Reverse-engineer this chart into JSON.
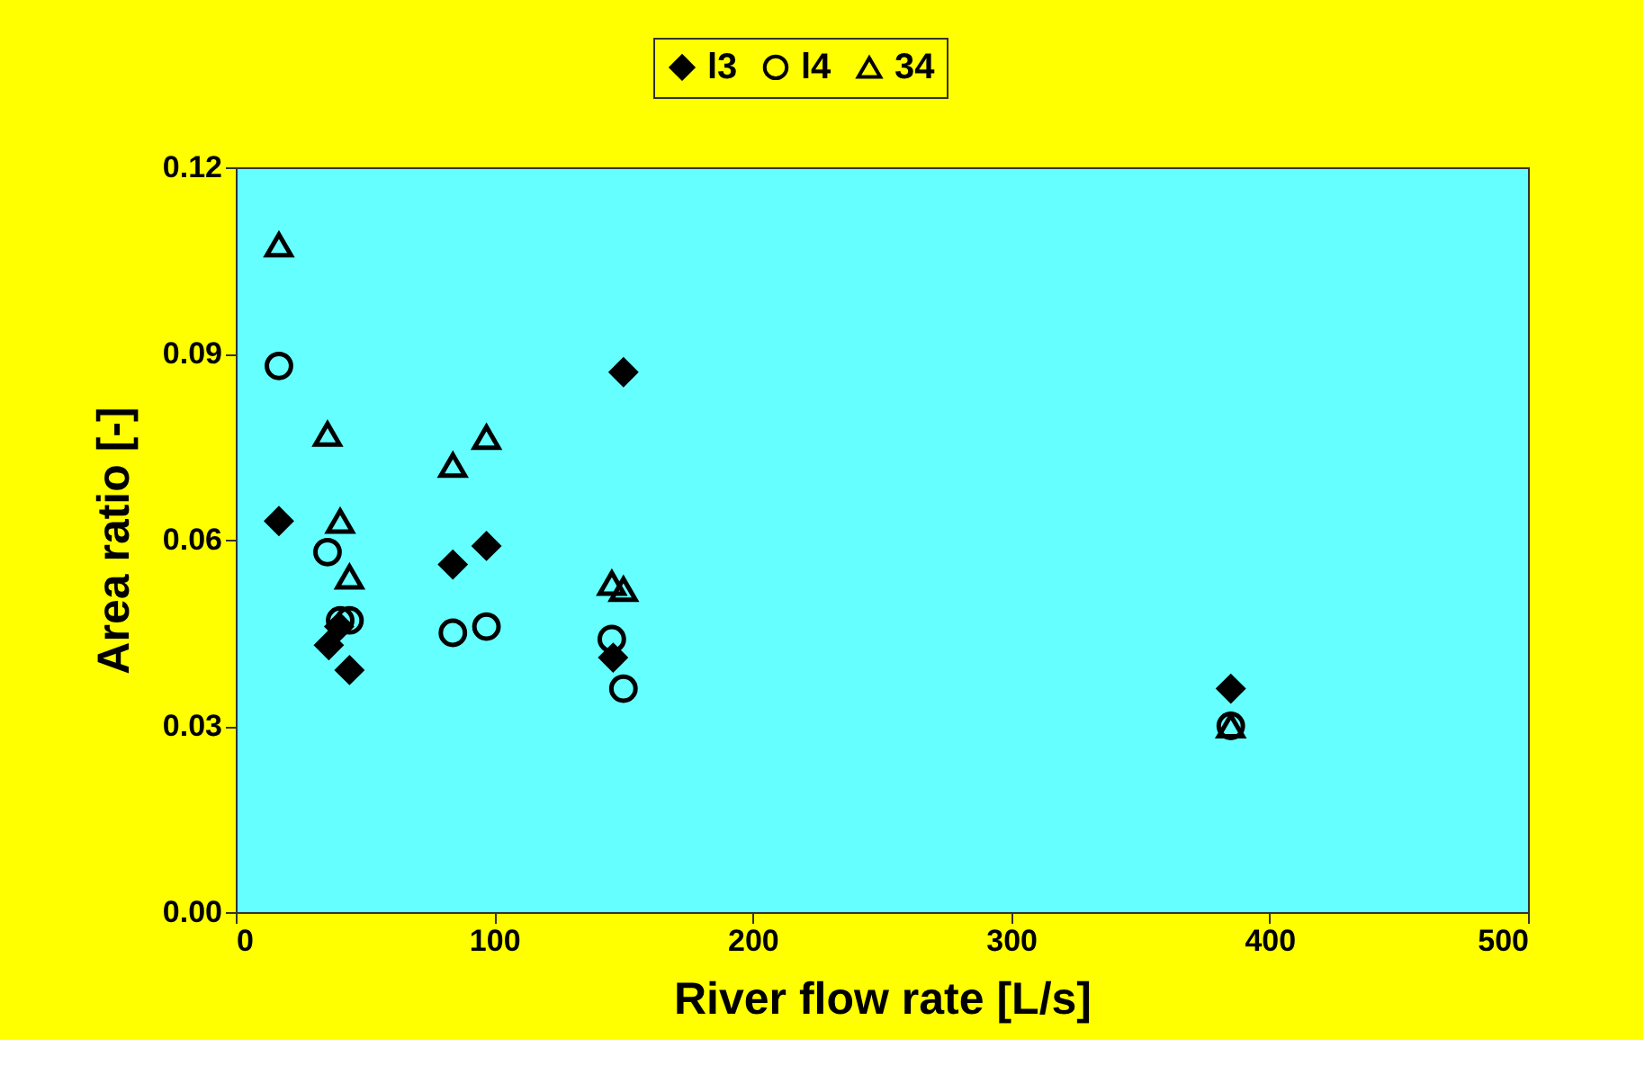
{
  "chart_data": {
    "type": "scatter",
    "xlabel": "River flow rate [L/s]",
    "ylabel": "Area ratio [-]",
    "xlim": [
      0,
      500
    ],
    "xticks": [
      0,
      100,
      200,
      300,
      400,
      500
    ],
    "ylim": [
      0,
      0.12
    ],
    "yticks": [
      {
        "value": 0,
        "label": "0.00"
      },
      {
        "value": 0.03,
        "label": "0.03"
      },
      {
        "value": 0.06,
        "label": "0.06"
      },
      {
        "value": 0.09,
        "label": "0.09"
      },
      {
        "value": 0.12,
        "label": "0.12"
      }
    ],
    "grid": false,
    "legend": "top",
    "series": [
      {
        "name": "l3",
        "color": "#000000",
        "marker": "diamond",
        "x": [
          16.7,
          36,
          40,
          44,
          84,
          97,
          146,
          150,
          385
        ],
        "values": [
          0.063,
          0.043,
          0.046,
          0.039,
          0.056,
          0.059,
          0.041,
          0.087,
          0.036
        ]
      },
      {
        "name": "l4",
        "color": "#000000",
        "marker": "circle",
        "x": [
          16.7,
          35.5,
          40.4,
          44,
          84,
          97,
          145.5,
          150,
          385
        ],
        "values": [
          0.088,
          0.058,
          0.047,
          0.047,
          0.045,
          0.046,
          0.044,
          0.036,
          0.03
        ]
      },
      {
        "name": "34",
        "color": "#000000",
        "marker": "triangle",
        "x": [
          16.7,
          35.5,
          40.4,
          44,
          84,
          97,
          145.5,
          150,
          385
        ],
        "values": [
          0.1075,
          0.077,
          0.063,
          0.054,
          0.072,
          0.0765,
          0.053,
          0.052,
          0.03
        ]
      }
    ]
  }
}
